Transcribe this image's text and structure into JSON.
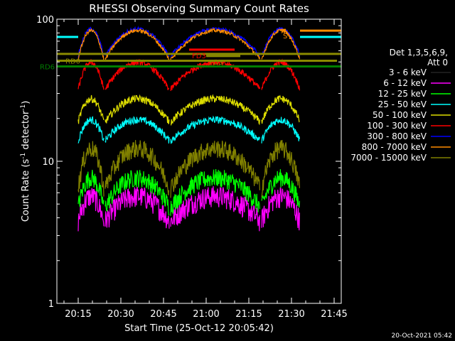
{
  "chart_data": {
    "type": "line",
    "title": "RHESSI Observing Summary Count Rates",
    "xlabel": "Start Time (25-Oct-12 20:05:42)",
    "ylabel_main": "Count Rate (s",
    "ylabel_exp1": "-1",
    "ylabel_mid": " detector",
    "ylabel_exp2": "-1",
    "ylabel_end": ")",
    "yscale": "log",
    "ylim": [
      1,
      100
    ],
    "xlim_min": [
      7.5,
      107.5
    ],
    "xticks": [
      {
        "min": 15,
        "label": "20:15"
      },
      {
        "min": 30,
        "label": "20:30"
      },
      {
        "min": 45,
        "label": "20:45"
      },
      {
        "min": 60,
        "label": "21:00"
      },
      {
        "min": 75,
        "label": "21:15"
      },
      {
        "min": 90,
        "label": "21:30"
      },
      {
        "min": 105,
        "label": "21:45"
      }
    ],
    "yticks": [
      {
        "v": 1,
        "label": "1"
      },
      {
        "v": 10,
        "label": "10"
      },
      {
        "v": 100,
        "label": "100"
      }
    ],
    "legend_header": [
      "Det 1,3,5,6,9,",
      "Att 0"
    ],
    "series": [
      {
        "name": "3 - 6 keV",
        "color": "#000000",
        "base": 1.6,
        "arch": 0.9,
        "noise": 0.35
      },
      {
        "name": "6 - 12 keV",
        "color": "#ff00ff",
        "base": 3.8,
        "arch": 0.5,
        "noise": 0.18
      },
      {
        "name": "12 - 25 keV",
        "color": "#00ff00",
        "base": 4.8,
        "arch": 0.6,
        "noise": 0.15
      },
      {
        "name": "25 - 50 keV",
        "color": "#00ffff",
        "base": 14,
        "arch": 0.4,
        "noise": 0.06
      },
      {
        "name": "50 - 100 keV",
        "color": "#dddd00",
        "base": 19,
        "arch": 0.45,
        "noise": 0.06
      },
      {
        "name": "100 - 300 keV",
        "color": "#ff0000",
        "base": 32,
        "arch": 0.55,
        "noise": 0.05
      },
      {
        "name": "300 - 800 keV",
        "color": "#0000ff",
        "base": 55,
        "arch": 0.55,
        "noise": 0.03
      },
      {
        "name": "800 - 7000 keV",
        "color": "#ff8c00",
        "base": 52,
        "arch": 0.6,
        "noise": 0.03
      },
      {
        "name": "7000 - 15000 keV",
        "color": "#808000",
        "base": 6.5,
        "arch": 0.9,
        "noise": 0.15
      }
    ],
    "ref_lines": [
      {
        "label": "RD0",
        "v": 51,
        "x0": 7.5,
        "x1": 106,
        "color": "#8b8b00",
        "width": 3
      },
      {
        "label": "RD6",
        "v": 46.5,
        "x0": 7.5,
        "x1": 107.5,
        "color": "#007f00",
        "width": 3
      },
      {
        "label": "",
        "v": 57,
        "x0": 7.5,
        "x1": 107.5,
        "color": "#8b8b00",
        "width": 3
      },
      {
        "label": "",
        "v": 75,
        "x0": 7.5,
        "x1": 15,
        "color": "#00ffff",
        "width": 3
      },
      {
        "label": "",
        "v": 75,
        "x0": 93,
        "x1": 107.5,
        "color": "#00ffff",
        "width": 3
      },
      {
        "label": "",
        "v": 83,
        "x0": 93,
        "x1": 107.5,
        "color": "#ff8c00",
        "width": 3
      }
    ],
    "flags": [
      {
        "label": "FD3",
        "v": 61,
        "x0": 54,
        "x1": 70,
        "color": "#ff0000"
      },
      {
        "label": "FD3",
        "v": 55,
        "x0": 60,
        "x1": 72,
        "color": "#8b8b00"
      },
      {
        "label": "S",
        "v": 84,
        "x0": 86,
        "x1": 88,
        "color": "#ff8c00"
      }
    ],
    "timestamp": "20-Oct-2021 05:42"
  }
}
